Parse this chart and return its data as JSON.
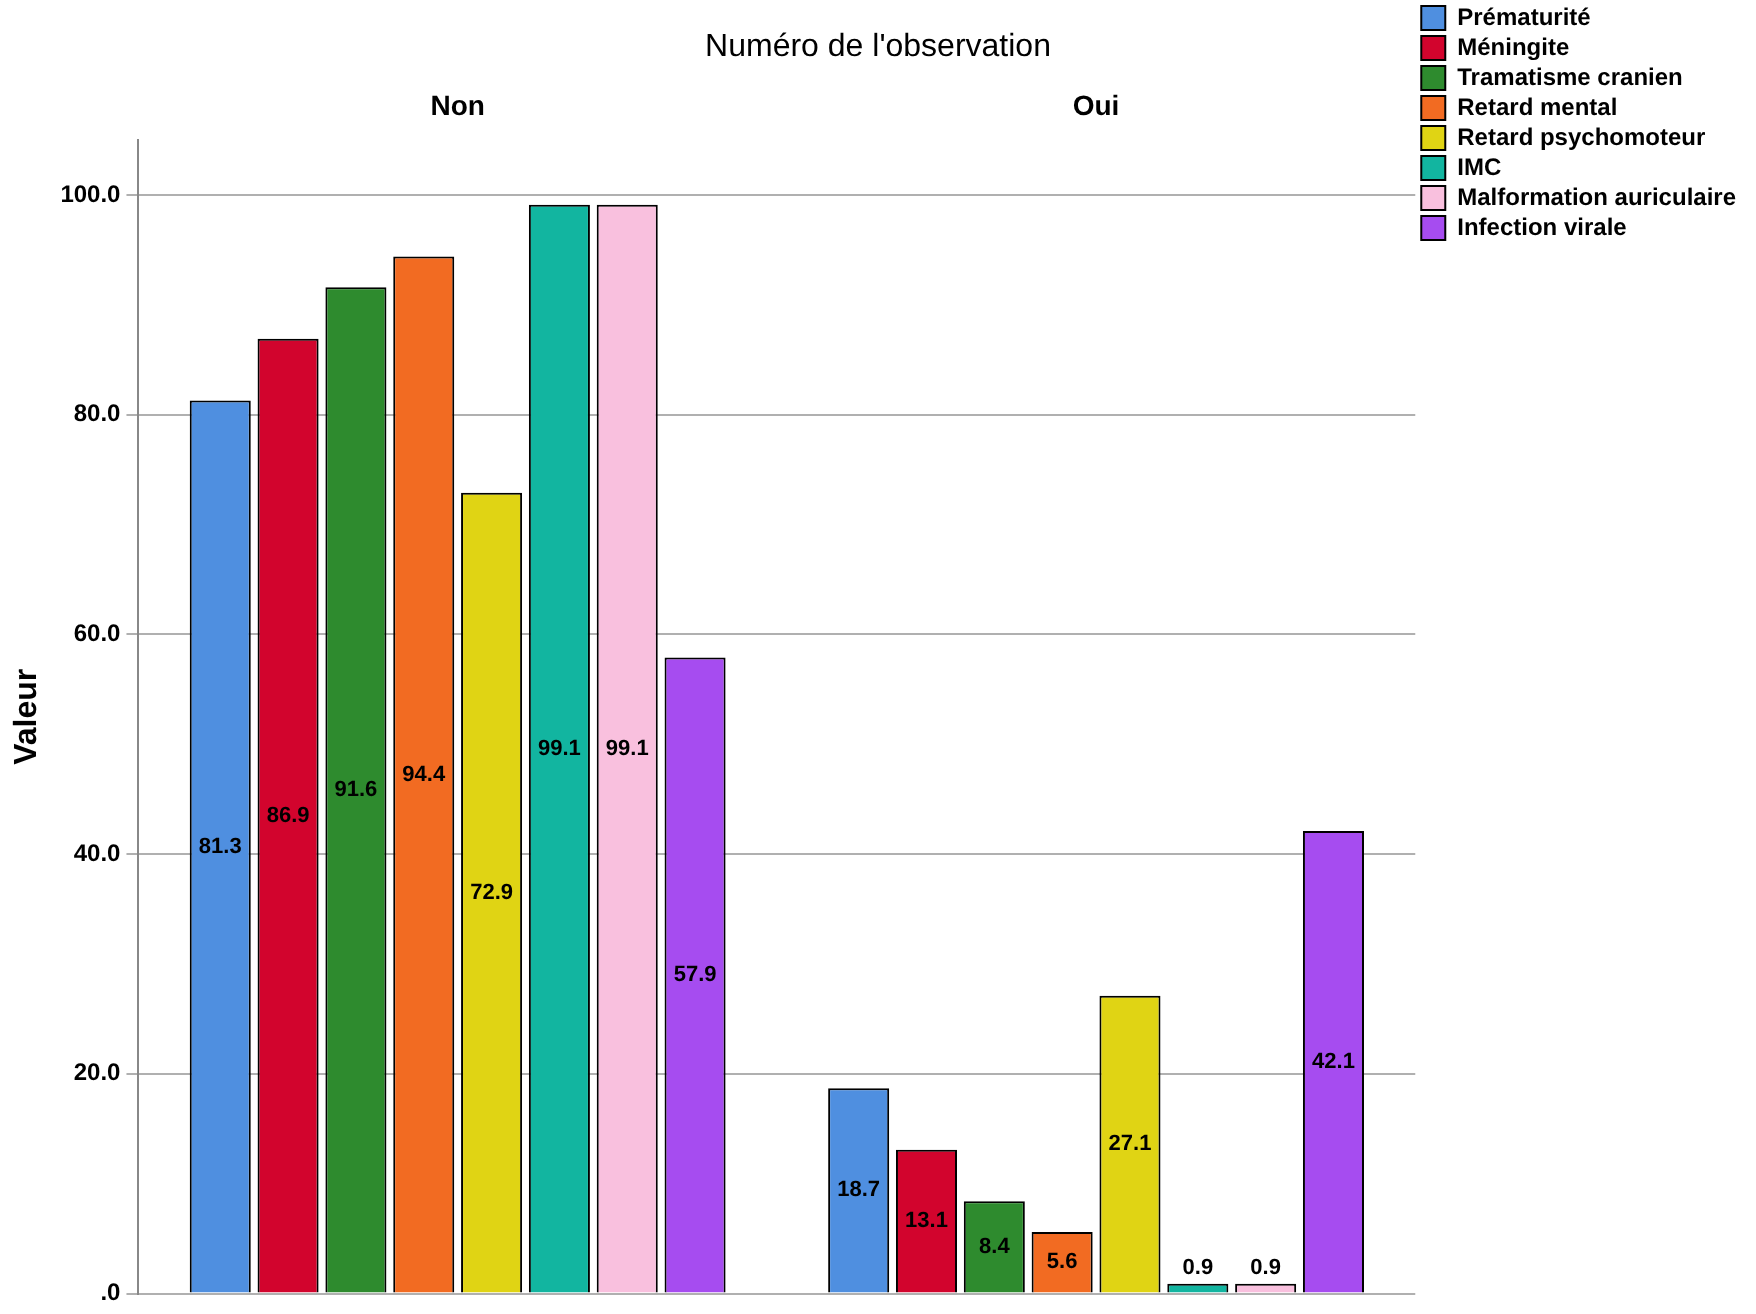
{
  "chart_data": {
    "type": "bar",
    "title": "Numéro de l'observation",
    "ylabel": "Valeur",
    "categories": [
      "Non",
      "Oui"
    ],
    "series": [
      {
        "name": "Prématurité",
        "color": "#4f8fe0",
        "values": [
          81.3,
          18.7
        ]
      },
      {
        "name": "Méningite",
        "color": "#d2042d",
        "values": [
          86.9,
          13.1
        ]
      },
      {
        "name": "Tramatisme cranien",
        "color": "#2e8b2e",
        "values": [
          91.6,
          8.4
        ]
      },
      {
        "name": "Retard mental",
        "color": "#f26b22",
        "values": [
          94.4,
          5.6
        ]
      },
      {
        "name": "Retard psychomoteur",
        "color": "#e0d414",
        "values": [
          72.9,
          27.1
        ]
      },
      {
        "name": "IMC",
        "color": "#12b5a0",
        "values": [
          99.1,
          0.9
        ]
      },
      {
        "name": "Malformation auriculaire",
        "color": "#f9c0de",
        "values": [
          99.1,
          0.9
        ]
      },
      {
        "name": "Infection virale",
        "color": "#a64cf0",
        "values": [
          57.9,
          42.1
        ]
      }
    ],
    "ylim": [
      0,
      105
    ],
    "yticks": [
      {
        "value": 0,
        "label": ".0"
      },
      {
        "value": 20,
        "label": "20.0"
      },
      {
        "value": 40,
        "label": "40.0"
      },
      {
        "value": 60,
        "label": "60.0"
      },
      {
        "value": 80,
        "label": "80.0"
      },
      {
        "value": 100,
        "label": "100.0"
      }
    ],
    "grid": "y",
    "legend": "top right",
    "data_labels": true
  }
}
